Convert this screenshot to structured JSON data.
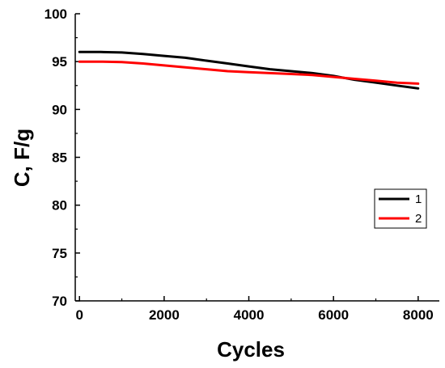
{
  "chart_data": {
    "type": "line",
    "xlabel": "Cycles",
    "ylabel": "C, F/g",
    "xlim": [
      -100,
      8500
    ],
    "ylim": [
      70,
      100
    ],
    "x_ticks": [
      0,
      2000,
      4000,
      6000,
      8000
    ],
    "y_ticks": [
      70,
      75,
      80,
      85,
      90,
      95,
      100
    ],
    "grid": false,
    "legend_position": "right",
    "series": [
      {
        "name": "1",
        "color": "#000000",
        "x": [
          0,
          500,
          1000,
          1500,
          2000,
          2500,
          3000,
          3500,
          4000,
          4500,
          5000,
          5500,
          6000,
          6500,
          7000,
          7500,
          8000
        ],
        "y": [
          96.0,
          96.0,
          95.95,
          95.8,
          95.6,
          95.4,
          95.1,
          94.8,
          94.5,
          94.2,
          94.0,
          93.8,
          93.5,
          93.1,
          92.8,
          92.5,
          92.2
        ]
      },
      {
        "name": "2",
        "color": "#ff0000",
        "x": [
          0,
          500,
          1000,
          1500,
          2000,
          2500,
          3000,
          3500,
          4000,
          4500,
          5000,
          5500,
          6000,
          6500,
          7000,
          7500,
          8000
        ],
        "y": [
          95.0,
          95.0,
          94.95,
          94.8,
          94.6,
          94.4,
          94.2,
          94.0,
          93.9,
          93.8,
          93.7,
          93.6,
          93.4,
          93.2,
          93.0,
          92.8,
          92.7
        ]
      }
    ]
  }
}
